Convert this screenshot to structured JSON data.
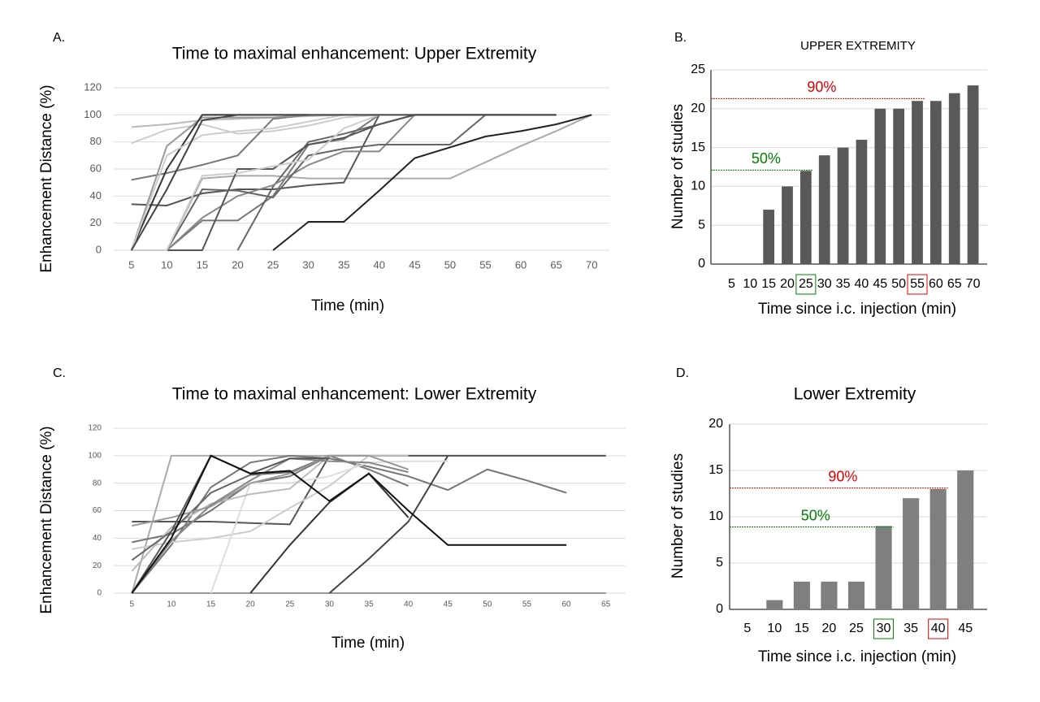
{
  "chart_data": [
    {
      "type": "line",
      "label": "A.",
      "title": "Time to maximal enhancement: Upper Extremity",
      "x_label": "Time (min)",
      "y_label": "Enhancement Distance (%)",
      "categories": [
        "5",
        "10",
        "15",
        "20",
        "25",
        "30",
        "35",
        "40",
        "45",
        "50",
        "55",
        "60",
        "65",
        "70"
      ],
      "ylim": [
        0,
        120
      ],
      "yticks": [
        0,
        20,
        40,
        60,
        80,
        100,
        120
      ],
      "grid": true,
      "series": [
        {
          "color": "#bbbbbb",
          "values": [
            91,
            93,
            96,
            97,
            98,
            99,
            100,
            null,
            null,
            null,
            null,
            null,
            null,
            null
          ]
        },
        {
          "color": "#aaaaaa",
          "values": [
            0,
            0,
            53,
            55,
            55,
            53,
            53,
            53,
            53,
            53,
            65,
            77,
            88,
            100
          ]
        },
        {
          "color": "#cccccc",
          "values": [
            79,
            89,
            93,
            86,
            88,
            92,
            98,
            100,
            null,
            null,
            null,
            null,
            null,
            null
          ]
        },
        {
          "color": "#777777",
          "values": [
            52,
            57,
            63,
            70,
            97,
            100,
            null,
            null,
            null,
            null,
            null,
            null,
            null,
            null
          ]
        },
        {
          "color": "#555555",
          "values": [
            34,
            33,
            42,
            45,
            45,
            48,
            50,
            100,
            null,
            null,
            null,
            null,
            null,
            null
          ]
        },
        {
          "color": "#777777",
          "values": [
            0,
            0,
            22,
            22,
            40,
            78,
            82,
            100,
            null,
            null,
            null,
            null,
            null,
            null
          ]
        },
        {
          "color": "#666666",
          "values": [
            null,
            null,
            null,
            0,
            47,
            80,
            86,
            93,
            100,
            100,
            100,
            null,
            null,
            null
          ]
        },
        {
          "color": "#888888",
          "values": [
            0,
            0,
            24,
            40,
            48,
            63,
            73,
            73,
            100,
            null,
            null,
            null,
            null,
            null
          ]
        },
        {
          "color": "#999999",
          "values": [
            0,
            77,
            98,
            98,
            98,
            100,
            null,
            null,
            null,
            null,
            null,
            null,
            null,
            null
          ]
        },
        {
          "color": "#666666",
          "values": [
            0,
            0,
            45,
            44,
            39,
            70,
            75,
            78,
            78,
            78,
            100,
            100,
            100,
            null
          ]
        },
        {
          "color": "#555555",
          "values": [
            null,
            0,
            0,
            60,
            60,
            78,
            83,
            93,
            100,
            100,
            100,
            100,
            null,
            null
          ]
        },
        {
          "color": "#333333",
          "values": [
            0,
            60,
            100,
            100,
            100,
            100,
            null,
            null,
            null,
            null,
            null,
            null,
            null,
            null
          ]
        },
        {
          "color": "#cccccc",
          "values": [
            0,
            0,
            55,
            57,
            62,
            67,
            90,
            100,
            null,
            null,
            null,
            null,
            null,
            null
          ]
        },
        {
          "color": "#cccccc",
          "values": [
            0,
            70,
            85,
            88,
            90,
            95,
            100,
            null,
            null,
            null,
            null,
            null,
            null,
            null
          ]
        },
        {
          "color": "#444444",
          "values": [
            0,
            45,
            96,
            100,
            100,
            100,
            100,
            100,
            100,
            100,
            100,
            100,
            100,
            null
          ]
        },
        {
          "color": "#222222",
          "values": [
            null,
            null,
            null,
            null,
            0,
            21,
            21,
            44,
            68,
            76,
            84,
            88,
            93,
            100
          ]
        }
      ]
    },
    {
      "type": "bar",
      "label": "B.",
      "title": "UPPER EXTREMITY",
      "x_label": "Time since i.c. injection (min)",
      "y_label": "Number of studies",
      "categories": [
        "5",
        "10",
        "15",
        "20",
        "25",
        "30",
        "35",
        "40",
        "45",
        "50",
        "55",
        "60",
        "65",
        "70"
      ],
      "values": [
        0,
        0,
        7,
        10,
        12,
        14,
        15,
        16,
        20,
        20,
        21,
        21,
        22,
        23
      ],
      "color": "#595959",
      "ylim": [
        0,
        25
      ],
      "yticks": [
        0,
        5,
        10,
        15,
        20,
        25
      ],
      "grid": true,
      "reference_lines": [
        {
          "label": "90%",
          "value": 21.3,
          "at": "55",
          "color": "#e00000"
        },
        {
          "label": "50%",
          "value": 12.1,
          "at": "25",
          "color": "#008000"
        }
      ]
    },
    {
      "type": "line",
      "label": "C.",
      "title": "Time to maximal enhancement: Lower Extremity",
      "x_label": "Time (min)",
      "y_label": "Enhancement Distance (%)",
      "categories": [
        "5",
        "10",
        "15",
        "20",
        "25",
        "30",
        "35",
        "40",
        "45",
        "50",
        "55",
        "60",
        "65"
      ],
      "ylim": [
        0,
        120
      ],
      "yticks": [
        0,
        20,
        40,
        60,
        80,
        100,
        120
      ],
      "grid": true,
      "series": [
        {
          "color": "#aaaaaa",
          "values": [
            0,
            100,
            100,
            100,
            100,
            100,
            100,
            100,
            100,
            100,
            100,
            100,
            100
          ]
        },
        {
          "color": "#555555",
          "values": [
            52,
            52,
            52,
            51,
            50,
            100,
            100,
            100,
            100,
            100,
            100,
            100,
            100
          ]
        },
        {
          "color": "#777777",
          "values": [
            0,
            35,
            77,
            95,
            100,
            98,
            92,
            85,
            75,
            90,
            82,
            73,
            null
          ]
        },
        {
          "color": "#999999",
          "values": [
            0,
            0,
            0,
            0,
            0,
            0,
            0,
            0,
            0,
            0,
            0,
            0,
            0
          ]
        },
        {
          "color": "#444444",
          "values": [
            null,
            null,
            null,
            null,
            null,
            0,
            25,
            52,
            100,
            null,
            null,
            null,
            null
          ]
        },
        {
          "color": "#333333",
          "values": [
            null,
            null,
            null,
            0,
            35,
            66,
            87,
            55,
            null,
            null,
            null,
            null,
            null
          ]
        },
        {
          "color": "#777777",
          "values": [
            37,
            43,
            60,
            80,
            85,
            100,
            90,
            78,
            null,
            null,
            null,
            null,
            null
          ]
        },
        {
          "color": "#cccccc",
          "values": [
            32,
            37,
            40,
            45,
            62,
            78,
            100,
            null,
            null,
            null,
            null,
            null,
            null
          ]
        },
        {
          "color": "#dddddd",
          "values": [
            null,
            null,
            0,
            80,
            80,
            85,
            95,
            96,
            96,
            null,
            null,
            null,
            null
          ]
        },
        {
          "color": "#bbbbbb",
          "values": [
            16,
            48,
            65,
            72,
            76,
            100,
            100,
            100,
            null,
            null,
            null,
            null,
            null
          ]
        },
        {
          "color": "#666666",
          "values": [
            24,
            45,
            73,
            86,
            88,
            100,
            null,
            null,
            null,
            null,
            null,
            null,
            null
          ]
        },
        {
          "color": "#999999",
          "values": [
            49,
            55,
            63,
            80,
            87,
            100,
            100,
            90,
            null,
            null,
            null,
            null,
            null
          ]
        },
        {
          "color": "#888888",
          "values": [
            0,
            38,
            64,
            82,
            98,
            96,
            95,
            88,
            null,
            null,
            null,
            null,
            null
          ]
        },
        {
          "color": "#555555",
          "values": [
            0,
            45,
            100,
            87,
            98,
            98,
            null,
            null,
            null,
            null,
            null,
            null,
            null
          ]
        },
        {
          "color": "#111111",
          "values": [
            0,
            40,
            100,
            87,
            89,
            67,
            87,
            60,
            35,
            35,
            35,
            35,
            null
          ]
        }
      ]
    },
    {
      "type": "bar",
      "label": "D.",
      "title": "Lower Extremity",
      "x_label": "Time since i.c. injection (min)",
      "y_label": "Number of studies",
      "categories": [
        "5",
        "10",
        "15",
        "20",
        "25",
        "30",
        "35",
        "40",
        "45"
      ],
      "values": [
        0,
        1,
        3,
        3,
        3,
        9,
        12,
        13,
        15
      ],
      "color": "#7f7f7f",
      "ylim": [
        0,
        20
      ],
      "yticks": [
        0,
        5,
        10,
        15,
        20
      ],
      "grid": true,
      "reference_lines": [
        {
          "label": "90%",
          "value": 13.1,
          "at": "40",
          "color": "#e00000"
        },
        {
          "label": "50%",
          "value": 8.9,
          "at": "30",
          "color": "#008000"
        }
      ]
    }
  ]
}
